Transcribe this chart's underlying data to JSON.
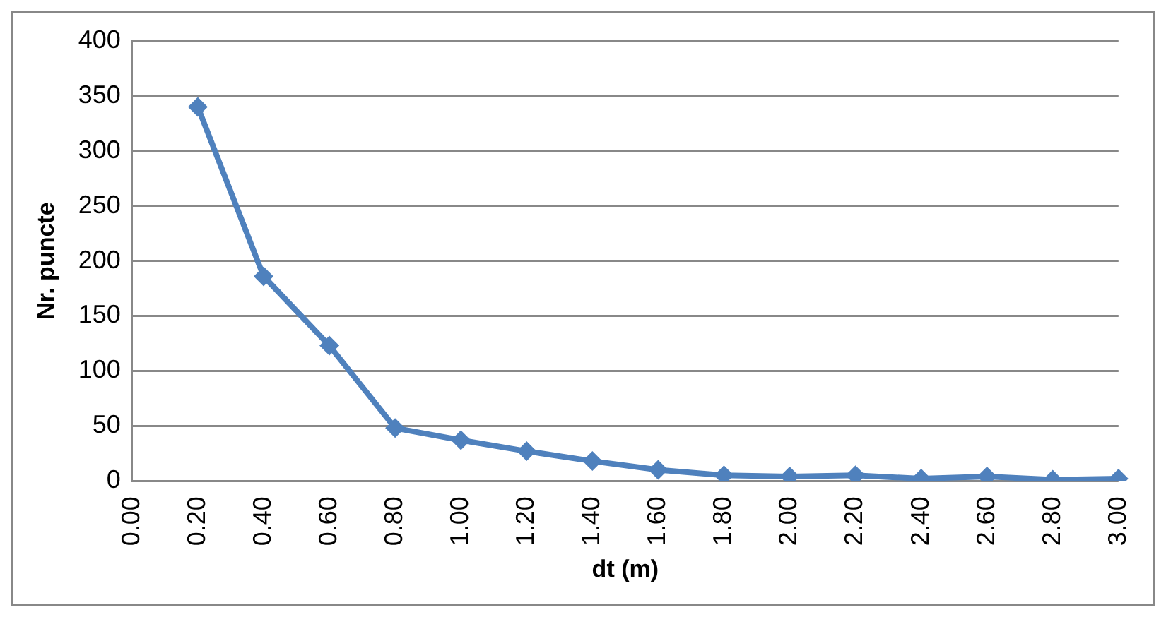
{
  "chart_data": {
    "type": "line",
    "xlabel": "dt (m)",
    "ylabel": "Nr. puncte",
    "categories": [
      "0.00",
      "0.20",
      "0.40",
      "0.60",
      "0.80",
      "1.00",
      "1.20",
      "1.40",
      "1.60",
      "1.80",
      "2.00",
      "2.20",
      "2.40",
      "2.60",
      "2.80",
      "3.00"
    ],
    "series": [
      {
        "color": "#4f81bd",
        "values": [
          null,
          340,
          186,
          123,
          48,
          37,
          27,
          18,
          10,
          5,
          4,
          5,
          2,
          4,
          1,
          2
        ]
      }
    ],
    "ylim": [
      0,
      400
    ],
    "yticks": [
      0,
      50,
      100,
      150,
      200,
      250,
      300,
      350,
      400
    ],
    "grid": "y",
    "legend": false,
    "marker": "diamond",
    "line_style": "solid"
  }
}
